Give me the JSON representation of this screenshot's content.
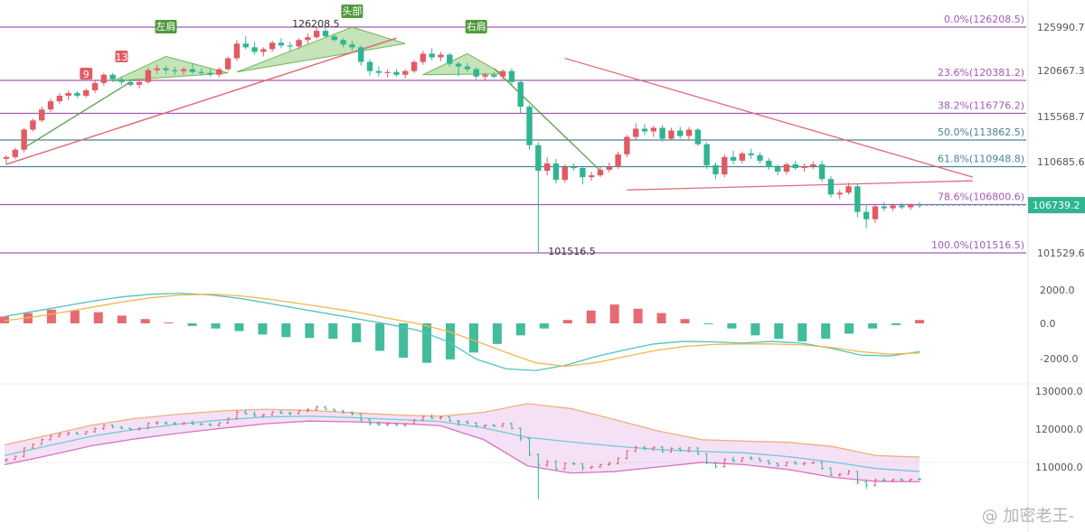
{
  "chart_data": [
    {
      "type": "candlestick",
      "title": "",
      "y_ticks": [
        "125990.7",
        "120667.3",
        "115568.7",
        "110685.6",
        "101529.6"
      ],
      "last_price": "106739.2",
      "fib_levels": [
        {
          "label": "0.0%(126208.5)",
          "value": 126208.5,
          "color": "#a05ab4"
        },
        {
          "label": "23.6%(120381.2)",
          "value": 120381.2,
          "color": "#a05ab4"
        },
        {
          "label": "38.2%(116776.2)",
          "value": 116776.2,
          "color": "#a05ab4"
        },
        {
          "label": "50.0%(113862.5)",
          "value": 113862.5,
          "color": "#4b8296"
        },
        {
          "label": "61.8%(110948.8)",
          "value": 110948.8,
          "color": "#4b8296"
        },
        {
          "label": "78.6%(106800.6)",
          "value": 106800.6,
          "color": "#a05ab4"
        },
        {
          "label": "100.0%(101516.5)",
          "value": 101516.5,
          "color": "#a05ab4"
        }
      ],
      "annotations": {
        "high": "126208.5",
        "low": "101516.5"
      },
      "pattern_labels": [
        "左肩",
        "头部",
        "右肩"
      ],
      "td_counts": [
        "9",
        "13"
      ],
      "candles": [
        [
          111.8,
          112.2,
          111.2,
          112.0
        ],
        [
          112.0,
          113.0,
          111.8,
          112.8
        ],
        [
          112.8,
          115.2,
          112.5,
          115.0
        ],
        [
          115.0,
          116.2,
          114.8,
          116.0
        ],
        [
          116.0,
          117.5,
          115.8,
          117.2
        ],
        [
          117.2,
          118.4,
          116.9,
          118.1
        ],
        [
          118.1,
          119.0,
          117.8,
          118.7
        ],
        [
          118.7,
          119.3,
          118.2,
          119.0
        ],
        [
          119.0,
          119.2,
          118.5,
          118.7
        ],
        [
          118.7,
          119.5,
          118.5,
          119.3
        ],
        [
          119.3,
          120.4,
          119.0,
          120.1
        ],
        [
          120.1,
          121.2,
          119.8,
          121.0
        ],
        [
          121.0,
          121.2,
          120.2,
          120.5
        ],
        [
          120.5,
          120.8,
          119.9,
          120.2
        ],
        [
          120.2,
          120.4,
          119.7,
          119.9
        ],
        [
          119.9,
          120.5,
          119.5,
          120.2
        ],
        [
          120.2,
          121.8,
          120.0,
          121.5
        ],
        [
          121.5,
          122.1,
          121.1,
          121.7
        ],
        [
          121.7,
          122.0,
          121.1,
          121.5
        ],
        [
          121.5,
          121.9,
          121.0,
          121.4
        ],
        [
          121.4,
          121.8,
          121.0,
          121.6
        ],
        [
          121.6,
          122.2,
          121.1,
          121.3
        ],
        [
          121.3,
          121.7,
          120.9,
          121.2
        ],
        [
          121.2,
          121.6,
          120.8,
          121.0
        ],
        [
          121.0,
          121.8,
          120.7,
          121.6
        ],
        [
          121.6,
          123.0,
          121.4,
          122.8
        ],
        [
          122.8,
          124.8,
          122.5,
          124.4
        ],
        [
          124.4,
          125.2,
          123.8,
          124.0
        ],
        [
          124.0,
          124.6,
          123.2,
          123.5
        ],
        [
          123.5,
          124.0,
          123.0,
          123.8
        ],
        [
          123.8,
          124.7,
          123.5,
          124.5
        ],
        [
          124.5,
          125.0,
          123.9,
          124.2
        ],
        [
          124.2,
          124.6,
          123.6,
          124.1
        ],
        [
          124.1,
          125.0,
          123.8,
          124.8
        ],
        [
          124.8,
          125.5,
          124.4,
          125.1
        ],
        [
          125.1,
          126.2,
          124.9,
          125.8
        ],
        [
          125.8,
          126.1,
          125.0,
          125.2
        ],
        [
          125.2,
          125.4,
          124.6,
          124.8
        ],
        [
          124.8,
          125.0,
          124.0,
          124.3
        ],
        [
          124.3,
          124.7,
          123.6,
          124.0
        ],
        [
          124.0,
          124.2,
          122.0,
          122.4
        ],
        [
          122.4,
          122.7,
          120.9,
          121.4
        ],
        [
          121.4,
          121.9,
          120.8,
          121.2
        ],
        [
          121.2,
          121.6,
          120.7,
          121.3
        ],
        [
          121.3,
          121.6,
          120.8,
          121.0
        ],
        [
          121.0,
          121.6,
          120.6,
          121.4
        ],
        [
          121.4,
          122.6,
          121.2,
          122.4
        ],
        [
          122.4,
          123.6,
          122.1,
          123.3
        ],
        [
          123.3,
          123.9,
          122.6,
          122.9
        ],
        [
          122.9,
          123.5,
          122.5,
          123.2
        ],
        [
          123.2,
          123.4,
          121.9,
          122.2
        ],
        [
          122.2,
          122.4,
          120.8,
          121.9
        ],
        [
          121.9,
          122.3,
          121.3,
          121.6
        ],
        [
          121.6,
          121.8,
          120.5,
          120.8
        ],
        [
          120.8,
          121.2,
          120.3,
          121.0
        ],
        [
          121.0,
          121.3,
          120.6,
          120.8
        ],
        [
          120.8,
          121.6,
          120.5,
          121.4
        ],
        [
          121.4,
          121.7,
          119.9,
          120.2
        ],
        [
          120.2,
          120.4,
          116.8,
          117.5
        ],
        [
          117.5,
          117.7,
          112.8,
          113.3
        ],
        [
          113.3,
          113.6,
          101.5,
          110.5
        ],
        [
          110.5,
          112.0,
          110.0,
          111.3
        ],
        [
          111.3,
          111.8,
          109.1,
          109.5
        ],
        [
          109.5,
          111.2,
          109.2,
          110.9
        ],
        [
          110.9,
          111.3,
          110.5,
          110.8
        ],
        [
          110.8,
          111.0,
          109.0,
          109.8
        ],
        [
          109.8,
          110.4,
          109.4,
          110.0
        ],
        [
          110.0,
          110.9,
          109.8,
          110.6
        ],
        [
          110.6,
          111.4,
          110.3,
          110.9
        ],
        [
          110.9,
          112.6,
          110.7,
          112.3
        ],
        [
          112.3,
          114.4,
          112.0,
          114.2
        ],
        [
          114.2,
          115.7,
          113.9,
          115.1
        ],
        [
          115.1,
          115.6,
          114.4,
          114.8
        ],
        [
          114.8,
          115.4,
          114.2,
          115.2
        ],
        [
          115.2,
          115.5,
          113.7,
          114.0
        ],
        [
          114.0,
          115.2,
          113.8,
          114.9
        ],
        [
          114.9,
          115.3,
          114.0,
          114.3
        ],
        [
          114.3,
          115.3,
          113.8,
          115.0
        ],
        [
          115.0,
          115.2,
          113.2,
          113.4
        ],
        [
          113.4,
          113.6,
          110.7,
          111.1
        ],
        [
          111.1,
          111.4,
          109.6,
          110.1
        ],
        [
          110.1,
          112.3,
          109.8,
          112.0
        ],
        [
          112.0,
          112.7,
          111.2,
          111.6
        ],
        [
          111.6,
          112.6,
          111.3,
          112.4
        ],
        [
          112.4,
          112.9,
          111.8,
          112.2
        ],
        [
          112.2,
          112.5,
          111.3,
          111.6
        ],
        [
          111.6,
          111.9,
          110.6,
          110.9
        ],
        [
          110.9,
          111.2,
          110.0,
          110.4
        ],
        [
          110.4,
          111.4,
          110.1,
          111.2
        ],
        [
          111.2,
          111.6,
          110.6,
          110.8
        ],
        [
          110.8,
          111.3,
          110.4,
          111.0
        ],
        [
          111.0,
          111.5,
          110.7,
          111.2
        ],
        [
          111.2,
          111.6,
          109.3,
          109.6
        ],
        [
          109.6,
          109.9,
          107.6,
          107.9
        ],
        [
          107.9,
          108.4,
          107.4,
          108.1
        ],
        [
          108.1,
          109.2,
          107.9,
          108.8
        ],
        [
          108.8,
          109.0,
          105.4,
          106.0
        ],
        [
          106.0,
          106.8,
          104.2,
          105.2
        ],
        [
          105.2,
          106.9,
          104.8,
          106.6
        ],
        [
          106.6,
          107.1,
          106.1,
          106.4
        ],
        [
          106.4,
          106.9,
          106.1,
          106.7
        ],
        [
          106.7,
          107.0,
          106.3,
          106.5
        ],
        [
          106.5,
          106.9,
          106.2,
          106.8
        ],
        [
          106.8,
          107.1,
          106.4,
          106.7
        ]
      ]
    },
    {
      "type": "macd",
      "y_ticks": [
        "2000.0",
        "0.0",
        "-2000.0"
      ],
      "dif": [
        400,
        700,
        1000,
        1300,
        1550,
        1700,
        1750,
        1650,
        1450,
        1150,
        850,
        550,
        250,
        -50,
        -400,
        -1050,
        -2100,
        -2650,
        -2750,
        -2450,
        -1950,
        -1550,
        -1200,
        -1050,
        -1080,
        -1150,
        -1050,
        -1150,
        -1450,
        -1850,
        -1900,
        -1650
      ],
      "dea": [
        150,
        380,
        650,
        950,
        1250,
        1500,
        1650,
        1700,
        1600,
        1400,
        1150,
        900,
        630,
        300,
        -20,
        -450,
        -1050,
        -1700,
        -2300,
        -2500,
        -2300,
        -1950,
        -1600,
        -1350,
        -1230,
        -1200,
        -1200,
        -1250,
        -1400,
        -1650,
        -1800,
        -1720
      ],
      "hist": [
        400,
        600,
        800,
        750,
        650,
        450,
        250,
        50,
        -150,
        -300,
        -450,
        -650,
        -800,
        -850,
        -900,
        -1100,
        -1600,
        -2000,
        -2300,
        -2100,
        -1700,
        -1200,
        -700,
        -300,
        200,
        750,
        1100,
        850,
        600,
        250,
        -50,
        -300,
        -700,
        -900,
        -1050,
        -900,
        -600,
        -300,
        -100,
        200
      ]
    },
    {
      "type": "bollinger",
      "y_ticks": [
        "130000.0",
        "120000.0",
        "110000.0"
      ],
      "upper": [
        115.8,
        118.4,
        121.0,
        122.8,
        123.9,
        124.8,
        125.2,
        124.9,
        124.3,
        123.7,
        123.4,
        124.4,
        126.7,
        125.4,
        122.5,
        119.5,
        117.2,
        116.8,
        116.5,
        115.4,
        113.0,
        112.6
      ],
      "mid": [
        113.0,
        115.6,
        118.1,
        119.9,
        121.3,
        122.4,
        123.2,
        123.4,
        123.0,
        122.5,
        122.0,
        120.3,
        117.8,
        116.6,
        115.5,
        114.6,
        114.1,
        113.7,
        112.7,
        111.3,
        109.6,
        108.8
      ],
      "lower": [
        110.6,
        113.0,
        115.6,
        117.4,
        118.9,
        120.2,
        121.4,
        122.1,
        121.9,
        121.5,
        120.9,
        117.2,
        110.3,
        108.4,
        108.8,
        110.0,
        111.2,
        110.6,
        109.3,
        107.3,
        106.2,
        106.1
      ]
    }
  ],
  "watermark": "@ 加密老王-"
}
